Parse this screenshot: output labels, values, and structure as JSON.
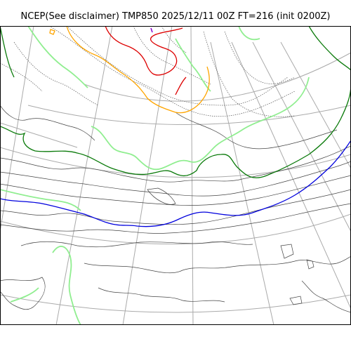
{
  "title": "NCEP(See disclaimer) TMP850 2025/12/11 00Z FT=216 (init 0200Z)",
  "colors": {
    "background": "#ffffff",
    "frame": "#000000",
    "graticule": "#aaaaaa",
    "isotherm_minor": "#444444",
    "isotherm_dotted": "#555555",
    "contour_green_dark": "#0a7a0a",
    "contour_green_light": "#90ee90",
    "contour_blue": "#0000dd",
    "contour_orange": "#ffa500",
    "contour_red": "#dd0000",
    "contour_purple": "#8800cc"
  }
}
